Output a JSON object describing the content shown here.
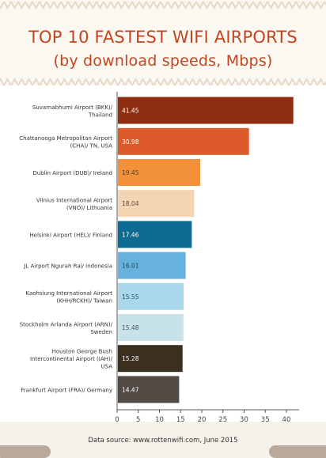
{
  "title": "TOP 10 FASTEST WIFI AIRPORTS",
  "subtitle": "(by download speeds, Mbps)",
  "source": "Data source: www.rottenwifi.com, June 2015",
  "colors": {
    "title": "#c1451f",
    "background": "#f6f2ea",
    "decoration": "#e6d9c7"
  },
  "chart_data": {
    "type": "bar",
    "orientation": "horizontal",
    "title": "TOP 10 FASTEST WIFI AIRPORTS",
    "subtitle": "(by download speeds, Mbps)",
    "xlabel": "",
    "ylabel": "",
    "xlim": [
      0,
      43
    ],
    "xticks": [
      0,
      5,
      10,
      15,
      20,
      25,
      30,
      35,
      40
    ],
    "grid": false,
    "legend": "none",
    "bars": [
      {
        "category": [
          "Suvarnabhumi Airport (BKK)/",
          "Thailand"
        ],
        "value": 41.45,
        "label": "41.45",
        "color": "#8e2f14",
        "label_color": "#ffffff"
      },
      {
        "category": [
          "Chattanooga Metropolitan Airport",
          "(CHA)/ TN, USA"
        ],
        "value": 30.98,
        "label": "30.98",
        "color": "#dd5a2a",
        "label_color": "#ffffff"
      },
      {
        "category": [
          "Dublin Airport (DUB)/ Ireland"
        ],
        "value": 19.45,
        "label": "19.45",
        "color": "#f2913a",
        "label_color": "#5a3a22"
      },
      {
        "category": [
          "Vilnius International Airport",
          "(VNO)/ Lithuania"
        ],
        "value": 18.04,
        "label": "18.04",
        "color": "#f4d5b3",
        "label_color": "#5a4a3a"
      },
      {
        "category": [
          "Helsinki Airport (HEL)/ Finland"
        ],
        "value": 17.46,
        "label": "17.46",
        "color": "#0c6a93",
        "label_color": "#ffffff"
      },
      {
        "category": [
          "JL Airport Ngurah Rai/ Indonesia"
        ],
        "value": 16.01,
        "label": "16.01",
        "color": "#67b2dc",
        "label_color": "#1f3f55"
      },
      {
        "category": [
          "Kaohsiung International Airport",
          "(KHH/RCKH)/ Taiwan"
        ],
        "value": 15.55,
        "label": "15.55",
        "color": "#a8d8ea",
        "label_color": "#2f4f60"
      },
      {
        "category": [
          "Stockholm Arlanda Airport (ARN)/",
          "Sweden"
        ],
        "value": 15.48,
        "label": "15.48",
        "color": "#c8e2ea",
        "label_color": "#3f5560"
      },
      {
        "category": [
          "Houston George Bush",
          "Intercontinental Airport (IAH)/",
          "USA"
        ],
        "value": 15.28,
        "label": "15.28",
        "color": "#3b2f20",
        "label_color": "#ffffff"
      },
      {
        "category": [
          "Frankfurt Airport (FRA)/ Germany"
        ],
        "value": 14.47,
        "label": "14.47",
        "color": "#524a45",
        "label_color": "#ffffff"
      }
    ]
  }
}
